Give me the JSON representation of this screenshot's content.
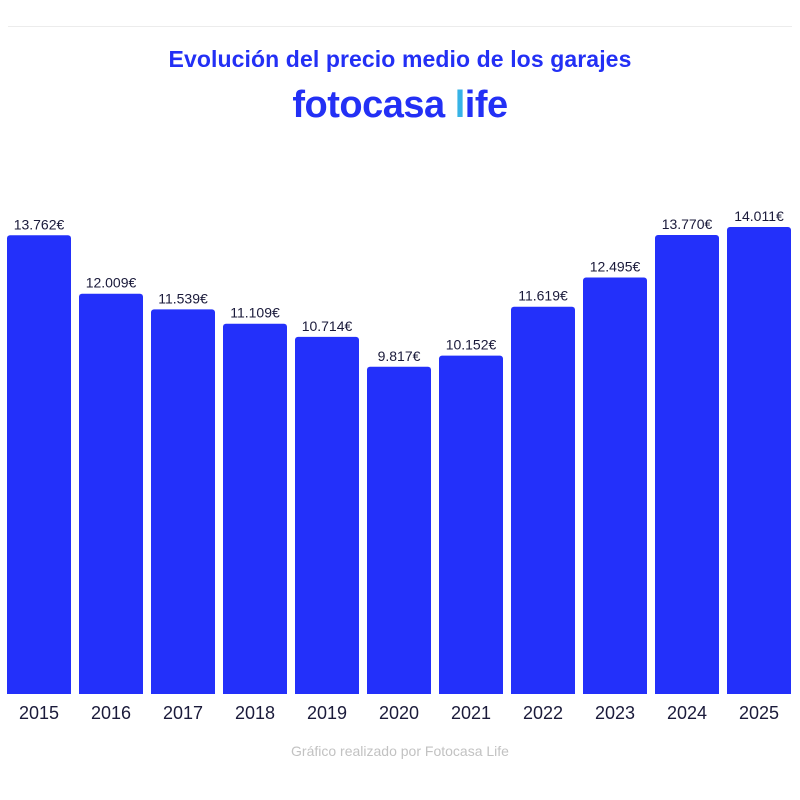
{
  "header": {
    "title": "Evolución del precio medio de los garajes",
    "logo_main": "fotocasa ",
    "logo_l": "l",
    "logo_rest": "ife"
  },
  "footer": {
    "credit": "Gráfico realizado por Fotocasa Life"
  },
  "chart_data": {
    "type": "bar",
    "categories": [
      "2015",
      "2016",
      "2017",
      "2018",
      "2019",
      "2020",
      "2021",
      "2022",
      "2023",
      "2024",
      "2025"
    ],
    "values": [
      13762,
      12009,
      11539,
      11109,
      10714,
      9817,
      10152,
      11619,
      12495,
      13770,
      14011
    ],
    "value_labels": [
      "13.762€",
      "12.009€",
      "11.539€",
      "11.109€",
      "10.714€",
      "9.817€",
      "10.152€",
      "11.619€",
      "12.495€",
      "13.770€",
      "14.011€"
    ],
    "title": "Evolución del precio medio de los garajes",
    "xlabel": "",
    "ylabel": "",
    "ylim": [
      0,
      14011
    ],
    "grid": false,
    "colors": {
      "bar": "#2330fa",
      "label": "#1a1a3a",
      "tick": "#1a1a3a"
    }
  }
}
